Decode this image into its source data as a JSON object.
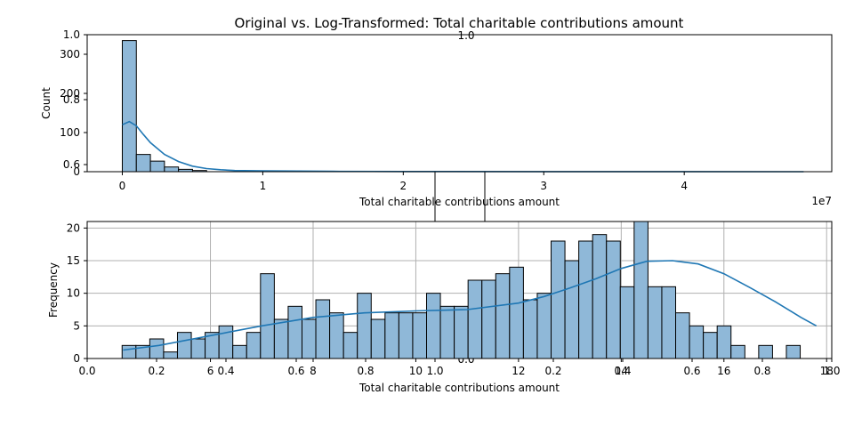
{
  "title": "Original vs. Log-Transformed: Total charitable contributions amount",
  "ghost_axes": {
    "top_label": "1.0",
    "bottom_label": "0.0",
    "left_ticks": [
      "1.0",
      "0.8",
      "0.6"
    ],
    "bottom_ticks": [
      "0.0",
      "0.2",
      "0.4",
      "0.6",
      "0.8",
      "1.0",
      "0.2",
      "0.4",
      "0.6",
      "0.8",
      "1.0"
    ]
  },
  "chart_data": [
    {
      "type": "bar",
      "subtype": "histogram",
      "xlabel": "Total charitable contributions amount",
      "ylabel": "Count",
      "xlim": [
        -0.25,
        5.05
      ],
      "ylim": [
        0,
        350
      ],
      "x_scale_label": "1e7",
      "x_ticks": [
        0,
        1,
        2,
        3,
        4
      ],
      "x_tick_labels": [
        "0",
        "1",
        "2",
        "3",
        "4"
      ],
      "y_ticks": [
        0,
        100,
        200,
        300
      ],
      "y_tick_labels": [
        "0",
        "100",
        "200",
        "300"
      ],
      "grid": false,
      "bin_edges": [
        0,
        0.1,
        0.2,
        0.3,
        0.4,
        0.5,
        0.6
      ],
      "counts": [
        335,
        44,
        27,
        12,
        6,
        3
      ],
      "kde": {
        "x": [
          0,
          0.05,
          0.1,
          0.15,
          0.2,
          0.3,
          0.4,
          0.5,
          0.6,
          0.7,
          0.8,
          1.0,
          1.5,
          2.0,
          3.0,
          4.0,
          4.85
        ],
        "y": [
          120,
          128,
          117,
          95,
          74,
          44,
          26,
          14,
          8,
          5,
          3,
          2,
          1,
          0.5,
          0.3,
          0.2,
          0.1
        ]
      },
      "colors": {
        "bar": "#8fb8d8",
        "edge": "#000000",
        "kde": "#1f77b4"
      }
    },
    {
      "type": "bar",
      "subtype": "histogram",
      "xlabel": "Total charitable contributions amount",
      "ylabel": "Frequency",
      "xlim": [
        3.6,
        18.1
      ],
      "ylim": [
        0,
        21
      ],
      "x_ticks": [
        6,
        8,
        10,
        12,
        14,
        16,
        18
      ],
      "x_tick_labels": [
        "6",
        "8",
        "10",
        "12",
        "14",
        "16",
        "18"
      ],
      "y_ticks": [
        0,
        5,
        10,
        15,
        20
      ],
      "y_tick_labels": [
        "0",
        "5",
        "10",
        "15",
        "20"
      ],
      "grid": true,
      "bin_start": 4.28,
      "bin_width": 0.2695,
      "counts": [
        2,
        2,
        3,
        1,
        4,
        3,
        4,
        5,
        2,
        4,
        13,
        6,
        8,
        6,
        9,
        7,
        4,
        10,
        6,
        7,
        7,
        7,
        10,
        8,
        8,
        12,
        12,
        13,
        14,
        9,
        10,
        18,
        15,
        18,
        19,
        18,
        11,
        21,
        11,
        11,
        7,
        5,
        4,
        5,
        2,
        0,
        2,
        0,
        2
      ],
      "kde": {
        "x": [
          4.3,
          5.0,
          6.0,
          7.0,
          8.0,
          9.0,
          10.0,
          11.0,
          12.0,
          12.5,
          13.0,
          13.5,
          14.0,
          14.5,
          15.0,
          15.5,
          16.0,
          16.5,
          17.0,
          17.5,
          17.8
        ],
        "y": [
          1.3,
          2.0,
          3.5,
          5.0,
          6.3,
          7.0,
          7.3,
          7.5,
          8.5,
          9.5,
          10.8,
          12.2,
          13.8,
          14.9,
          15.0,
          14.5,
          13.0,
          10.9,
          8.7,
          6.3,
          5.0
        ]
      },
      "colors": {
        "bar": "#8fb8d8",
        "edge": "#000000",
        "kde": "#1f77b4"
      }
    }
  ]
}
